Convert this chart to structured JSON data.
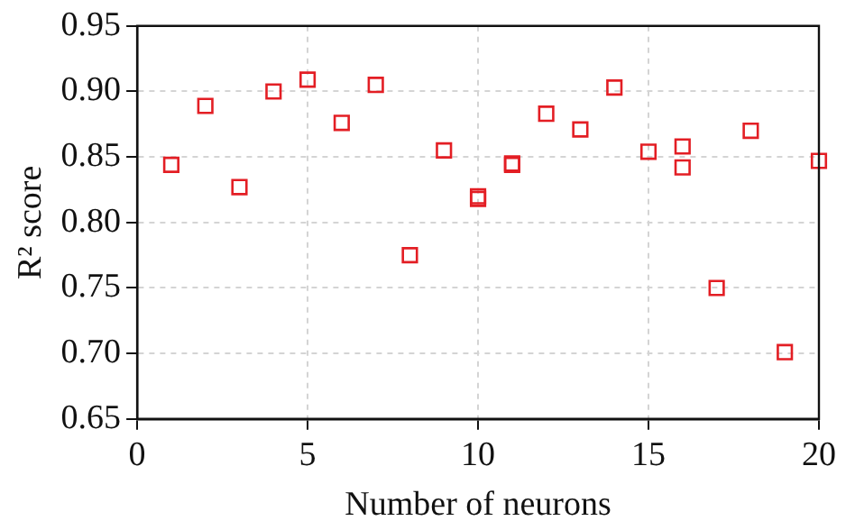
{
  "chart_data": {
    "type": "scatter",
    "xlabel": "Number of neurons",
    "ylabel": "R² score",
    "x": [
      1,
      2,
      3,
      4,
      5,
      6,
      7,
      8,
      9,
      10,
      10,
      11,
      11,
      12,
      13,
      14,
      15,
      16,
      16,
      17,
      18,
      19,
      20
    ],
    "series": [
      {
        "color": "#e31e24",
        "values": [
          0.844,
          0.889,
          0.827,
          0.9,
          0.909,
          0.876,
          0.905,
          0.775,
          0.855,
          0.82,
          0.818,
          0.845,
          0.844,
          0.883,
          0.871,
          0.903,
          0.854,
          0.858,
          0.842,
          0.75,
          0.87,
          0.701,
          0.847
        ]
      }
    ],
    "xlim": [
      0,
      20
    ],
    "xticks": [
      0,
      5,
      10,
      15,
      20
    ],
    "ylim": [
      0.65,
      0.95
    ],
    "yticks": [
      {
        "value": 0.65,
        "label": "0.65"
      },
      {
        "value": 0.7,
        "label": "0.70"
      },
      {
        "value": 0.75,
        "label": "0.75"
      },
      {
        "value": 0.8,
        "label": "0.80"
      },
      {
        "value": 0.85,
        "label": "0.85"
      },
      {
        "value": 0.9,
        "label": "0.90"
      },
      {
        "value": 0.95,
        "label": "0.95"
      }
    ],
    "grid": true,
    "marker": "square",
    "legend": false
  }
}
